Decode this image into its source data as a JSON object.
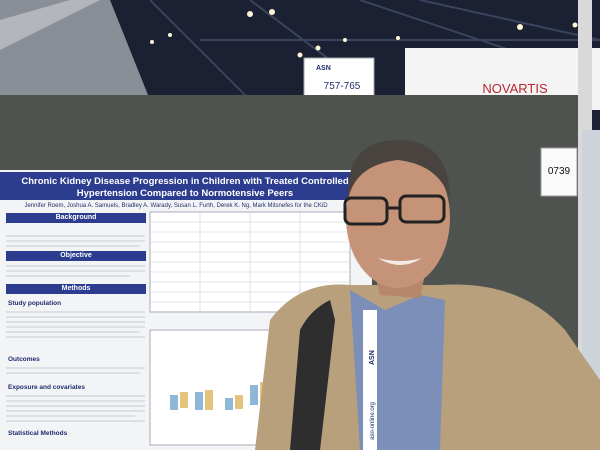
{
  "booth_sign": {
    "logo": "ASN",
    "range": "757-765"
  },
  "banner": {
    "brand": "NOVARTIS"
  },
  "board_number": "0739",
  "poster": {
    "title": "Chronic Kidney Disease Progression in Children with Treated Controlled Hypertension Compared to Normotensive Peers",
    "authors": "Jennifer Roem, Joshua A. Samuels, Bradley A. Warady, Susan L. Furth, Derek K. Ng, Mark Mitsnefes for the CKiD",
    "sections": [
      "Background",
      "Objective",
      "Methods",
      "Study population",
      "Outcomes",
      "Exposure and covariates",
      "Statistical Methods"
    ]
  },
  "lanyard": {
    "logo": "ASN",
    "url": "asn-online.org"
  }
}
